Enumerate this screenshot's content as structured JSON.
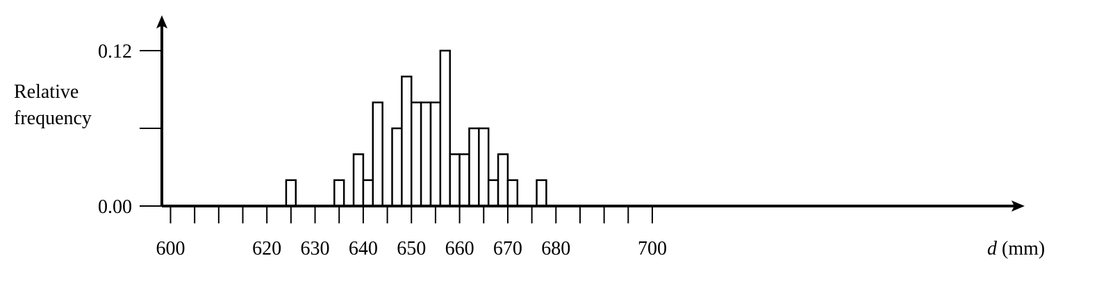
{
  "chart_data": {
    "type": "bar",
    "title": "",
    "ylabel_lines": [
      "Relative",
      "frequency"
    ],
    "xlabel_var": "d",
    "xlabel_unit": " (mm)",
    "bin_width": 2,
    "bins": [
      {
        "start": 624,
        "value": 0.02
      },
      {
        "start": 634,
        "value": 0.02
      },
      {
        "start": 638,
        "value": 0.04
      },
      {
        "start": 640,
        "value": 0.02
      },
      {
        "start": 642,
        "value": 0.08
      },
      {
        "start": 646,
        "value": 0.06
      },
      {
        "start": 648,
        "value": 0.1
      },
      {
        "start": 650,
        "value": 0.08
      },
      {
        "start": 652,
        "value": 0.08
      },
      {
        "start": 654,
        "value": 0.08
      },
      {
        "start": 656,
        "value": 0.12
      },
      {
        "start": 658,
        "value": 0.04
      },
      {
        "start": 660,
        "value": 0.04
      },
      {
        "start": 662,
        "value": 0.06
      },
      {
        "start": 664,
        "value": 0.06
      },
      {
        "start": 666,
        "value": 0.02
      },
      {
        "start": 668,
        "value": 0.04
      },
      {
        "start": 670,
        "value": 0.02
      },
      {
        "start": 676,
        "value": 0.02
      }
    ],
    "x_tick_labels": [
      "600",
      "620",
      "630",
      "640",
      "650",
      "660",
      "670",
      "680",
      "700"
    ],
    "y_tick_labels": [
      "0.00",
      "0.12"
    ],
    "xlim": [
      598.2,
      705
    ],
    "ylim": [
      0,
      0.12
    ],
    "grid": false
  }
}
